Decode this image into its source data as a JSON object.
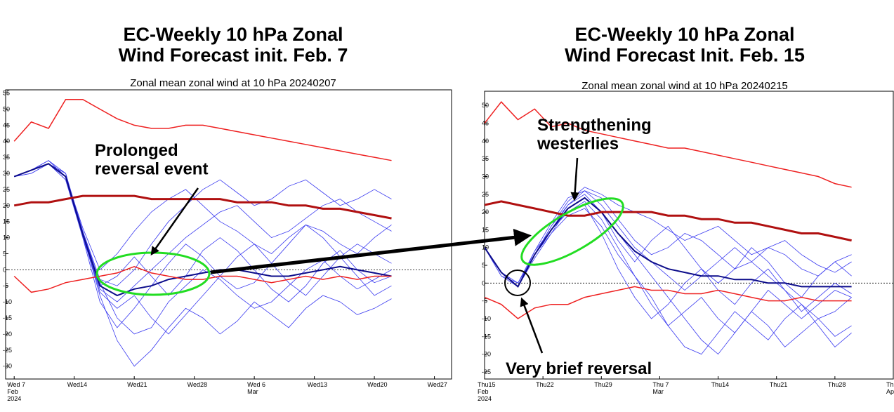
{
  "chart_data": [
    {
      "type": "line",
      "title": "EC-Weekly 10 hPa Zonal\nWind Forecast init. Feb. 7",
      "subtitle": "Zonal mean zonal wind at 10 hPa 20240207",
      "x": [
        "2024-02-07",
        "2024-02-09",
        "2024-02-11",
        "2024-02-13",
        "2024-02-15",
        "2024-02-17",
        "2024-02-19",
        "2024-02-21",
        "2024-02-23",
        "2024-02-25",
        "2024-02-27",
        "2024-02-29",
        "2024-03-02",
        "2024-03-04",
        "2024-03-06",
        "2024-03-08",
        "2024-03-10",
        "2024-03-12",
        "2024-03-14",
        "2024-03-16",
        "2024-03-18",
        "2024-03-20",
        "2024-03-22"
      ],
      "xlim": [
        "2024-02-06",
        "2024-03-29"
      ],
      "ylim": [
        -34,
        56
      ],
      "xticks": [
        {
          "value": "2024-02-07",
          "label": "Wed 7\nFeb\n2024"
        },
        {
          "value": "2024-02-14",
          "label": "Wed14"
        },
        {
          "value": "2024-02-21",
          "label": "Wed21"
        },
        {
          "value": "2024-02-28",
          "label": "Wed28"
        },
        {
          "value": "2024-03-06",
          "label": "Wed 6\nMar"
        },
        {
          "value": "2024-03-13",
          "label": "Wed13"
        },
        {
          "value": "2024-03-20",
          "label": "Wed20"
        },
        {
          "value": "2024-03-27",
          "label": "Wed27"
        }
      ],
      "yticks": [
        -30,
        -25,
        -20,
        -15,
        -10,
        -5,
        0,
        5,
        10,
        15,
        20,
        25,
        30,
        35,
        40,
        45,
        50,
        55
      ],
      "zero_line": true,
      "series": [
        {
          "color": "#3a3af0",
          "values": [
            29,
            31,
            33,
            28,
            10,
            -6,
            -10,
            -5,
            0,
            5,
            10,
            14,
            18,
            20,
            15,
            10,
            12,
            16,
            20,
            22,
            18,
            15,
            12
          ]
        },
        {
          "color": "#3a3af0",
          "values": [
            29,
            31,
            34,
            29,
            12,
            -4,
            -15,
            -20,
            -18,
            -10,
            -5,
            0,
            -3,
            -8,
            -12,
            -10,
            -5,
            0,
            3,
            -2,
            -6,
            -3,
            0
          ]
        },
        {
          "color": "#3a3af0",
          "values": [
            29,
            30,
            33,
            30,
            11,
            -8,
            -22,
            -30,
            -25,
            -18,
            -12,
            -15,
            -20,
            -16,
            -10,
            -14,
            -18,
            -12,
            -8,
            -10,
            -14,
            -12,
            -9
          ]
        },
        {
          "color": "#3a3af0",
          "values": [
            29,
            31,
            33,
            29,
            13,
            0,
            5,
            12,
            18,
            22,
            25,
            20,
            15,
            12,
            8,
            5,
            10,
            14,
            12,
            8,
            5,
            10,
            14
          ]
        },
        {
          "color": "#3a3af0",
          "values": [
            29,
            31,
            34,
            30,
            12,
            -3,
            -5,
            0,
            8,
            15,
            20,
            25,
            28,
            24,
            20,
            22,
            26,
            28,
            24,
            20,
            22,
            25,
            22
          ]
        },
        {
          "color": "#3a3af0",
          "values": [
            29,
            31,
            33,
            28,
            11,
            -7,
            -12,
            -8,
            -15,
            -20,
            -14,
            -8,
            -2,
            4,
            8,
            2,
            -4,
            -8,
            -2,
            4,
            8,
            5,
            2
          ]
        },
        {
          "color": "#3a3af0",
          "values": [
            29,
            31,
            34,
            29,
            12,
            -5,
            -2,
            4,
            -2,
            -8,
            -2,
            6,
            10,
            6,
            0,
            -6,
            -10,
            -5,
            2,
            6,
            0,
            -4,
            -2
          ]
        },
        {
          "color": "#3a3af0",
          "values": [
            29,
            30,
            33,
            30,
            10,
            -10,
            -18,
            -12,
            -5,
            2,
            8,
            4,
            -2,
            -6,
            -4,
            2,
            8,
            14,
            10,
            4,
            -2,
            -8,
            -5
          ]
        },
        {
          "color": "#0c0c8a",
          "values": [
            29,
            31,
            33,
            29,
            11,
            -5,
            -8,
            -6,
            -5,
            -3,
            -2,
            -1,
            0,
            0,
            -1,
            -2,
            -2,
            -1,
            0,
            1,
            0,
            -1,
            -2
          ]
        },
        {
          "color": "#ee2020",
          "values": [
            40,
            46,
            44,
            53,
            53,
            50,
            47,
            45,
            44,
            44,
            45,
            45,
            44,
            43,
            42,
            41,
            40,
            39,
            38,
            37,
            36,
            35,
            34
          ]
        },
        {
          "color": "#ee2020",
          "values": [
            -2,
            -7,
            -6,
            -4,
            -3,
            -2,
            -1,
            1,
            -1,
            -2,
            -3,
            -3,
            -2,
            -2,
            -3,
            -4,
            -3,
            -2,
            -3,
            -2,
            -3,
            -2,
            -2
          ]
        },
        {
          "color": "#b01010",
          "values": [
            20,
            21,
            21,
            22,
            23,
            23,
            23,
            23,
            22,
            22,
            22,
            22,
            22,
            21,
            21,
            21,
            20,
            20,
            19,
            19,
            18,
            17,
            16
          ]
        }
      ],
      "annotations": [
        "Prolonged\nreversal event"
      ]
    },
    {
      "type": "line",
      "title": "EC-Weekly 10 hPa Zonal\nWind Forecast Init. Feb. 15",
      "subtitle": "Zonal mean zonal wind at 10 hPa 20240215",
      "x": [
        "2024-02-15",
        "2024-02-17",
        "2024-02-19",
        "2024-02-21",
        "2024-02-23",
        "2024-02-25",
        "2024-02-27",
        "2024-02-29",
        "2024-03-02",
        "2024-03-04",
        "2024-03-06",
        "2024-03-08",
        "2024-03-10",
        "2024-03-12",
        "2024-03-14",
        "2024-03-16",
        "2024-03-18",
        "2024-03-20",
        "2024-03-22",
        "2024-03-24",
        "2024-03-26",
        "2024-03-28",
        "2024-03-30"
      ],
      "xlim": [
        "2024-02-15",
        "2024-04-04"
      ],
      "ylim": [
        -27,
        54
      ],
      "xticks": [
        {
          "value": "2024-02-15",
          "label": "Thu15\nFeb\n2024"
        },
        {
          "value": "2024-02-22",
          "label": "Thu22"
        },
        {
          "value": "2024-02-29",
          "label": "Thu29"
        },
        {
          "value": "2024-03-07",
          "label": "Thu 7\nMar"
        },
        {
          "value": "2024-03-14",
          "label": "Thu14"
        },
        {
          "value": "2024-03-21",
          "label": "Thu21"
        },
        {
          "value": "2024-03-28",
          "label": "Thu28"
        },
        {
          "value": "2024-04-04",
          "label": "Thu\nAp"
        }
      ],
      "yticks": [
        -25,
        -20,
        -15,
        -10,
        -5,
        0,
        5,
        10,
        15,
        20,
        25,
        30,
        35,
        40,
        45,
        50
      ],
      "zero_line": true,
      "series": [
        {
          "color": "#3a3af0",
          "values": [
            10,
            3,
            -1,
            8,
            16,
            22,
            26,
            24,
            18,
            12,
            8,
            10,
            14,
            12,
            8,
            4,
            6,
            10,
            8,
            4,
            2,
            6,
            8
          ]
        },
        {
          "color": "#3a3af0",
          "values": [
            10,
            3,
            0,
            9,
            15,
            20,
            23,
            18,
            10,
            2,
            -6,
            -12,
            -8,
            -4,
            -10,
            -14,
            -8,
            -2,
            -6,
            -10,
            -6,
            -2,
            -4
          ]
        },
        {
          "color": "#3a3af0",
          "values": [
            10,
            2,
            -1,
            7,
            14,
            21,
            24,
            20,
            14,
            8,
            2,
            -4,
            -10,
            -16,
            -20,
            -14,
            -8,
            -12,
            -18,
            -14,
            -10,
            -15,
            -12
          ]
        },
        {
          "color": "#3a3af0",
          "values": [
            10,
            3,
            -1,
            8,
            16,
            23,
            27,
            25,
            22,
            20,
            18,
            15,
            12,
            14,
            16,
            12,
            8,
            10,
            12,
            8,
            5,
            3,
            6
          ]
        },
        {
          "color": "#3a3af0",
          "values": [
            10,
            3,
            0,
            8,
            15,
            20,
            22,
            14,
            4,
            -4,
            -10,
            -6,
            0,
            4,
            -2,
            -6,
            0,
            4,
            -2,
            -8,
            -4,
            0,
            -3
          ]
        },
        {
          "color": "#3a3af0",
          "values": [
            10,
            3,
            -1,
            9,
            17,
            24,
            26,
            22,
            16,
            10,
            6,
            2,
            -2,
            2,
            6,
            10,
            6,
            2,
            -2,
            -6,
            -10,
            -8,
            -4
          ]
        },
        {
          "color": "#3a3af0",
          "values": [
            10,
            2,
            0,
            8,
            14,
            19,
            21,
            16,
            8,
            2,
            -4,
            -12,
            -18,
            -20,
            -14,
            -8,
            -12,
            -16,
            -10,
            -6,
            -12,
            -18,
            -14
          ]
        },
        {
          "color": "#3a3af0",
          "values": [
            10,
            3,
            -1,
            8,
            15,
            22,
            25,
            20,
            12,
            6,
            12,
            16,
            10,
            4,
            0,
            4,
            10,
            6,
            0,
            -4,
            2,
            6,
            2
          ]
        },
        {
          "color": "#0c0c8a",
          "values": [
            10,
            3,
            -1,
            8,
            15,
            21,
            24,
            20,
            14,
            9,
            6,
            4,
            3,
            2,
            2,
            1,
            1,
            0,
            0,
            -1,
            -1,
            -1,
            -1
          ]
        },
        {
          "color": "#ee2020",
          "values": [
            45,
            51,
            46,
            49,
            44,
            45,
            43,
            42,
            41,
            40,
            39,
            38,
            38,
            37,
            36,
            35,
            34,
            33,
            32,
            31,
            30,
            28,
            27
          ]
        },
        {
          "color": "#ee2020",
          "values": [
            -4,
            -6,
            -10,
            -7,
            -6,
            -6,
            -4,
            -3,
            -2,
            -1,
            -2,
            -2,
            -3,
            -3,
            -2,
            -3,
            -4,
            -5,
            -5,
            -4,
            -5,
            -5,
            -5
          ]
        },
        {
          "color": "#b01010",
          "values": [
            22,
            23,
            22,
            21,
            20,
            19,
            19,
            20,
            20,
            20,
            20,
            19,
            19,
            18,
            18,
            17,
            17,
            16,
            15,
            14,
            14,
            13,
            12
          ]
        }
      ],
      "annotations": [
        "Strengthening\nwesterlies",
        "Very brief reversal"
      ]
    }
  ]
}
